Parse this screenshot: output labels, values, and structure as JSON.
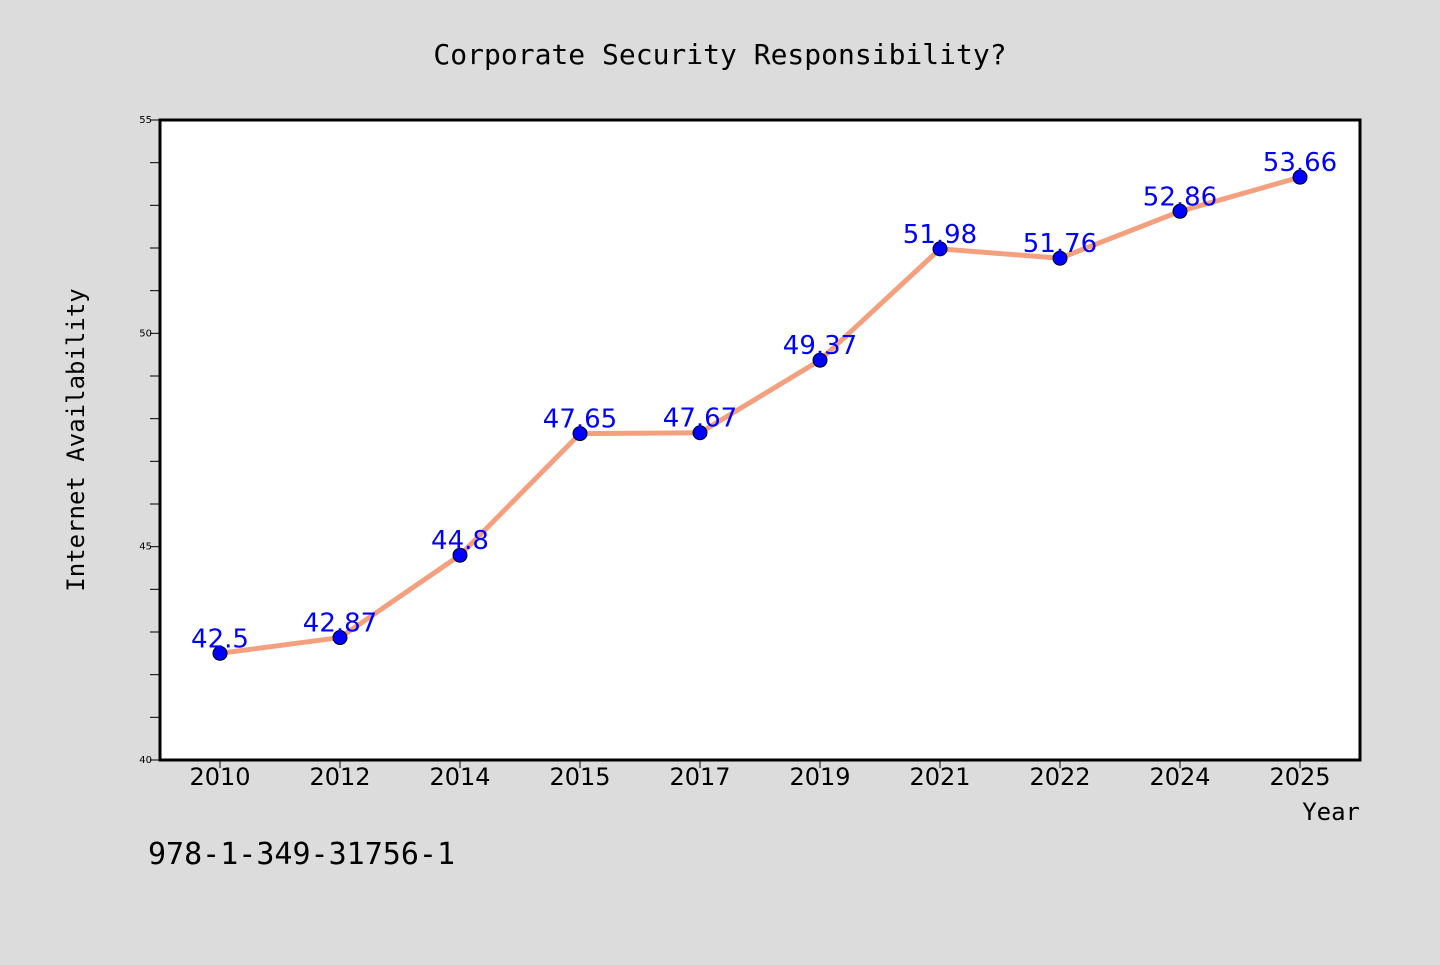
{
  "chart_data": {
    "type": "line",
    "title": "Corporate Security Responsibility?",
    "xlabel": "Year",
    "ylabel": "Internet Availability",
    "categories": [
      "2010",
      "2012",
      "2014",
      "2015",
      "2017",
      "2019",
      "2021",
      "2022",
      "2024",
      "2025"
    ],
    "series": [
      {
        "values": [
          42.5,
          42.87,
          44.8,
          47.65,
          47.67,
          49.37,
          51.98,
          51.76,
          52.86,
          53.66
        ],
        "value_labels": [
          "42.5",
          "42.87",
          "44.8",
          "47.65",
          "47.67",
          "49.37",
          "51.98",
          "51.76",
          "52.86",
          "53.66"
        ]
      }
    ],
    "ylim": [
      40,
      55
    ],
    "yticks": [
      "40",
      "45",
      "50",
      "55"
    ],
    "grid": false,
    "line_color": "#f4a07f",
    "marker_color": "#0000ff",
    "label_color": "#0000ff",
    "background": "#dcdcdc",
    "plot_background": "#ffffff"
  },
  "footer": {
    "isbn": "978-1-349-31756-1"
  }
}
